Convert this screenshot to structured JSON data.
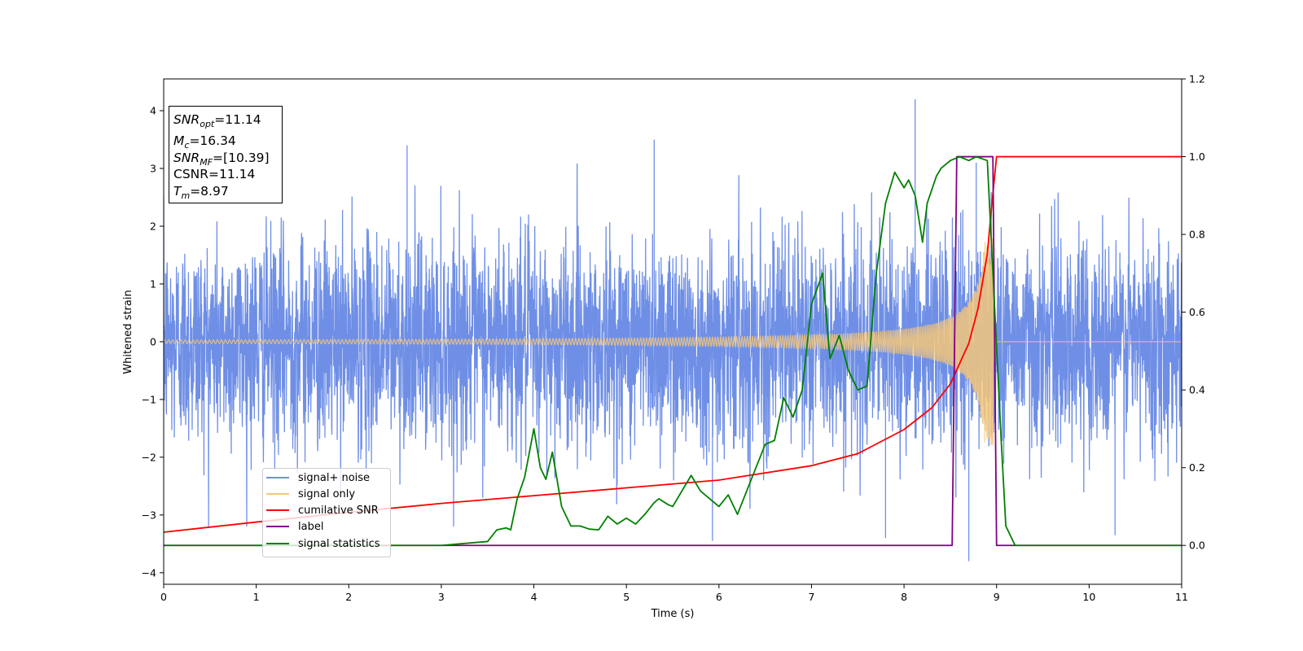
{
  "chart_data": {
    "type": "line",
    "xlabel": "Time (s)",
    "ylabel": "Whitened strain",
    "xlim": [
      0,
      11
    ],
    "ylim_left": [
      -4.2,
      4.55
    ],
    "ylim_right": [
      -0.1,
      1.2
    ],
    "x_ticks": [
      "0",
      "1",
      "2",
      "3",
      "4",
      "5",
      "6",
      "7",
      "8",
      "9",
      "10",
      "11"
    ],
    "y_ticks_left": [
      "4",
      "3",
      "2",
      "1",
      "0",
      "−1",
      "−2",
      "−3",
      "−4"
    ],
    "y_ticks_right": [
      "1.2",
      "1.0",
      "0.8",
      "0.6",
      "0.4",
      "0.2",
      "0.0"
    ],
    "info_box": {
      "snr_opt": {
        "main": "SNR",
        "sub": "opt",
        "value": "=11.14"
      },
      "mc": {
        "main": "M",
        "sub": "c",
        "value": "=16.34"
      },
      "snr_mf": {
        "main": "SNR",
        "sub": "MF",
        "value": "=[10.39]"
      },
      "csnr": {
        "text": "CSNR=11.14"
      },
      "tm": {
        "main": "T",
        "sub": "m",
        "value": "=8.97"
      }
    },
    "series": [
      {
        "name": "signal+ noise",
        "color": "#6f8fe6",
        "axis": "left",
        "description_points": {
          "noise_amplitude_std": 0.9,
          "peak_spikes": [
            [
              2.63,
              3.4
            ],
            [
              5.3,
              3.5
            ],
            [
              8.12,
              4.2
            ],
            [
              8.78,
              3.1
            ],
            [
              8.7,
              -3.8
            ],
            [
              5.93,
              -3.45
            ],
            [
              7.8,
              -3.4
            ],
            [
              10.28,
              -3.35
            ]
          ]
        }
      },
      {
        "name": "signal only",
        "color": "#f5c77a",
        "axis": "left",
        "chirp": {
          "t_merge": 8.97,
          "amplitude_at_merge": 1.8
        }
      },
      {
        "name": "cumilative SNR",
        "color": "#ff0000",
        "axis": "right",
        "x": [
          0,
          1,
          2,
          3,
          4,
          5,
          6,
          7,
          7.5,
          8,
          8.3,
          8.5,
          8.7,
          8.8,
          8.9,
          8.95,
          9.0,
          11
        ],
        "y": [
          0.034,
          0.06,
          0.085,
          0.108,
          0.128,
          0.148,
          0.168,
          0.205,
          0.236,
          0.298,
          0.354,
          0.415,
          0.52,
          0.61,
          0.75,
          0.88,
          1.0,
          1.0
        ]
      },
      {
        "name": "label",
        "color": "#800080",
        "axis": "right",
        "x": [
          0,
          8.52,
          8.57,
          8.96,
          9.0,
          11
        ],
        "y": [
          0,
          0,
          1,
          1,
          0,
          0
        ]
      },
      {
        "name": "signal statistics",
        "color": "#008000",
        "axis": "right",
        "x": [
          0,
          3.0,
          3.2,
          3.5,
          3.6,
          3.7,
          3.75,
          3.82,
          3.9,
          4.0,
          4.07,
          4.13,
          4.2,
          4.3,
          4.4,
          4.5,
          4.6,
          4.7,
          4.8,
          4.9,
          5.0,
          5.1,
          5.2,
          5.3,
          5.35,
          5.45,
          5.5,
          5.6,
          5.7,
          5.8,
          5.9,
          6.0,
          6.1,
          6.2,
          6.3,
          6.4,
          6.5,
          6.6,
          6.7,
          6.8,
          6.9,
          7.0,
          7.12,
          7.2,
          7.3,
          7.4,
          7.5,
          7.6,
          7.7,
          7.8,
          7.9,
          8.0,
          8.05,
          8.12,
          8.2,
          8.25,
          8.35,
          8.4,
          8.5,
          8.6,
          8.7,
          8.78,
          8.9,
          9.05,
          9.1,
          9.2,
          11
        ],
        "y": [
          0,
          0.0,
          0.004,
          0.01,
          0.04,
          0.045,
          0.04,
          0.12,
          0.175,
          0.3,
          0.2,
          0.17,
          0.24,
          0.1,
          0.05,
          0.05,
          0.042,
          0.04,
          0.075,
          0.055,
          0.07,
          0.055,
          0.08,
          0.11,
          0.12,
          0.105,
          0.1,
          0.14,
          0.18,
          0.14,
          0.12,
          0.1,
          0.13,
          0.08,
          0.14,
          0.2,
          0.26,
          0.27,
          0.38,
          0.33,
          0.4,
          0.62,
          0.7,
          0.48,
          0.54,
          0.45,
          0.4,
          0.41,
          0.7,
          0.88,
          0.96,
          0.92,
          0.94,
          0.9,
          0.78,
          0.88,
          0.95,
          0.97,
          0.99,
          1.0,
          0.99,
          1.0,
          0.99,
          0.27,
          0.05,
          0.0,
          0.0
        ]
      }
    ],
    "legend": {
      "placement": "lower-left",
      "entries": [
        "signal+ noise",
        "signal only",
        "cumilative SNR",
        "label",
        "signal statistics"
      ]
    }
  }
}
